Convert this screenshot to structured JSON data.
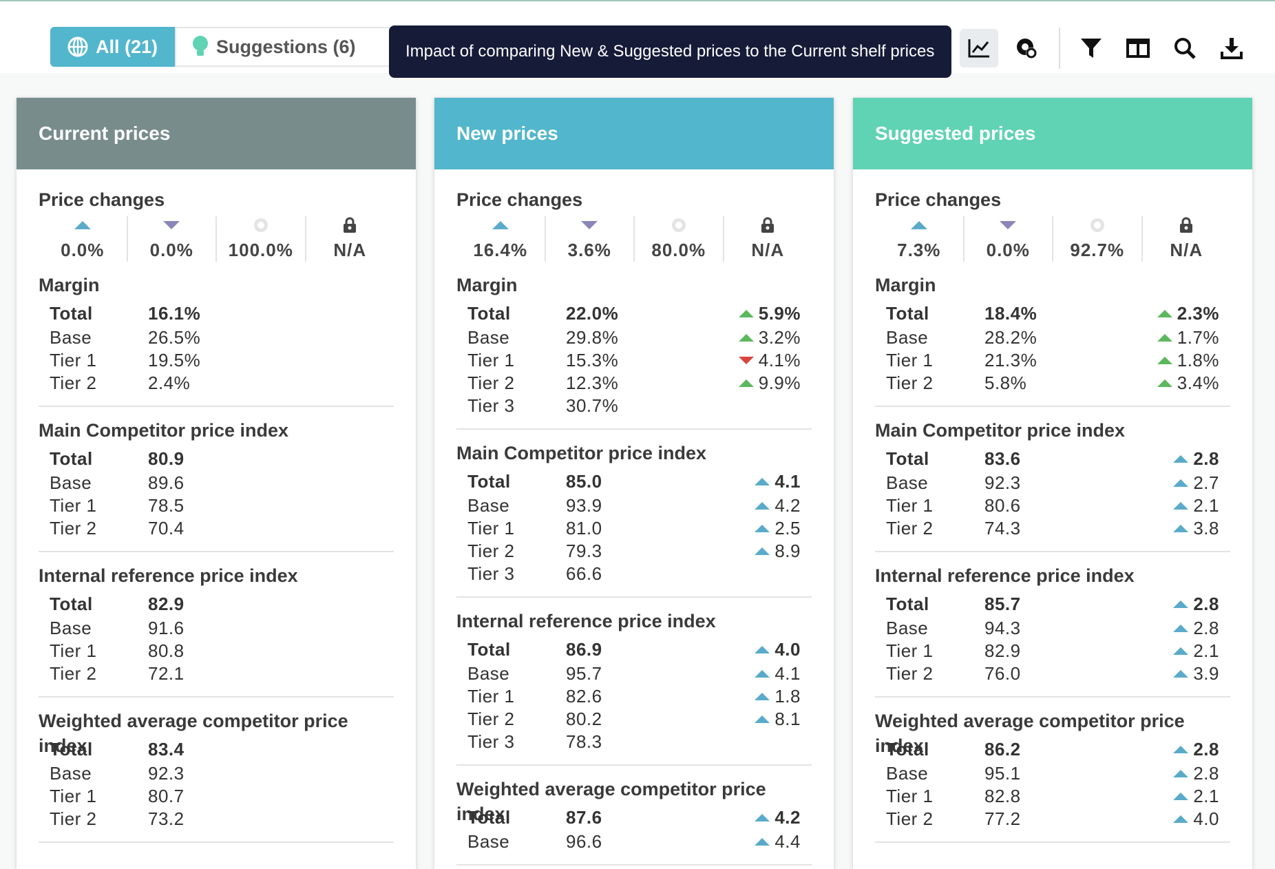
{
  "toolbar": {
    "tabs": [
      "All (21)",
      "Suggestions (6)"
    ],
    "tooltip": "Impact of comparing New & Suggested prices to the Current shelf prices"
  },
  "panels": [
    {
      "title": "Current prices",
      "color": "#788c8c",
      "price_changes": {
        "title": "Price changes",
        "values": [
          "0.0%",
          "0.0%",
          "100.0%",
          "N/A"
        ]
      },
      "sections": [
        {
          "title": "Margin",
          "arrow_color": "#5cb85c",
          "rows": [
            {
              "label": "Total",
              "value": "16.1%"
            },
            {
              "label": "Base",
              "value": "26.5%"
            },
            {
              "label": "Tier 1",
              "value": "19.5%"
            },
            {
              "label": "Tier 2",
              "value": "2.4%"
            }
          ]
        },
        {
          "title": "Main Competitor price index",
          "arrow_color": "#5aabc9",
          "rows": [
            {
              "label": "Total",
              "value": "80.9"
            },
            {
              "label": "Base",
              "value": "89.6"
            },
            {
              "label": "Tier 1",
              "value": "78.5"
            },
            {
              "label": "Tier 2",
              "value": "70.4"
            }
          ]
        },
        {
          "title": "Internal reference price index",
          "arrow_color": "#5aabc9",
          "rows": [
            {
              "label": "Total",
              "value": "82.9"
            },
            {
              "label": "Base",
              "value": "91.6"
            },
            {
              "label": "Tier 1",
              "value": "80.8"
            },
            {
              "label": "Tier 2",
              "value": "72.1"
            }
          ]
        },
        {
          "title": "Weighted average competitor price index",
          "arrow_color": "#5aabc9",
          "rows": [
            {
              "label": "Total",
              "value": "83.4"
            },
            {
              "label": "Base",
              "value": "92.3"
            },
            {
              "label": "Tier 1",
              "value": "80.7"
            },
            {
              "label": "Tier 2",
              "value": "73.2"
            }
          ]
        }
      ]
    },
    {
      "title": "New prices",
      "color": "#52b6cc",
      "price_changes": {
        "title": "Price changes",
        "values": [
          "16.4%",
          "3.6%",
          "80.0%",
          "N/A"
        ]
      },
      "sections": [
        {
          "title": "Margin",
          "arrow_color": "#5cb85c",
          "rows": [
            {
              "label": "Total",
              "value": "22.0%",
              "change": "5.9%",
              "trend": "up"
            },
            {
              "label": "Base",
              "value": "29.8%",
              "change": "3.2%",
              "trend": "up"
            },
            {
              "label": "Tier 1",
              "value": "15.3%",
              "change": "4.1%",
              "trend": "down"
            },
            {
              "label": "Tier 2",
              "value": "12.3%",
              "change": "9.9%",
              "trend": "up"
            },
            {
              "label": "Tier 3",
              "value": "30.7%"
            }
          ]
        },
        {
          "title": "Main Competitor price index",
          "arrow_color": "#5aabc9",
          "rows": [
            {
              "label": "Total",
              "value": "85.0",
              "change": "4.1",
              "trend": "up"
            },
            {
              "label": "Base",
              "value": "93.9",
              "change": "4.2",
              "trend": "up"
            },
            {
              "label": "Tier 1",
              "value": "81.0",
              "change": "2.5",
              "trend": "up"
            },
            {
              "label": "Tier 2",
              "value": "79.3",
              "change": "8.9",
              "trend": "up"
            },
            {
              "label": "Tier 3",
              "value": "66.6"
            }
          ]
        },
        {
          "title": "Internal reference price index",
          "arrow_color": "#5aabc9",
          "rows": [
            {
              "label": "Total",
              "value": "86.9",
              "change": "4.0",
              "trend": "up"
            },
            {
              "label": "Base",
              "value": "95.7",
              "change": "4.1",
              "trend": "up"
            },
            {
              "label": "Tier 1",
              "value": "82.6",
              "change": "1.8",
              "trend": "up"
            },
            {
              "label": "Tier 2",
              "value": "80.2",
              "change": "8.1",
              "trend": "up"
            },
            {
              "label": "Tier 3",
              "value": "78.3"
            }
          ]
        },
        {
          "title": "Weighted average competitor price index",
          "arrow_color": "#5aabc9",
          "rows": [
            {
              "label": "Total",
              "value": "87.6",
              "change": "4.2",
              "trend": "up"
            },
            {
              "label": "Base",
              "value": "96.6",
              "change": "4.4",
              "trend": "up"
            }
          ]
        }
      ]
    },
    {
      "title": "Suggested prices",
      "color": "#5fd3b4",
      "price_changes": {
        "title": "Price changes",
        "values": [
          "7.3%",
          "0.0%",
          "92.7%",
          "N/A"
        ]
      },
      "sections": [
        {
          "title": "Margin",
          "arrow_color": "#5cb85c",
          "rows": [
            {
              "label": "Total",
              "value": "18.4%",
              "change": "2.3%",
              "trend": "up"
            },
            {
              "label": "Base",
              "value": "28.2%",
              "change": "1.7%",
              "trend": "up"
            },
            {
              "label": "Tier 1",
              "value": "21.3%",
              "change": "1.8%",
              "trend": "up"
            },
            {
              "label": "Tier 2",
              "value": "5.8%",
              "change": "3.4%",
              "trend": "up"
            }
          ]
        },
        {
          "title": "Main Competitor price index",
          "arrow_color": "#5aabc9",
          "rows": [
            {
              "label": "Total",
              "value": "83.6",
              "change": "2.8",
              "trend": "up"
            },
            {
              "label": "Base",
              "value": "92.3",
              "change": "2.7",
              "trend": "up"
            },
            {
              "label": "Tier 1",
              "value": "80.6",
              "change": "2.1",
              "trend": "up"
            },
            {
              "label": "Tier 2",
              "value": "74.3",
              "change": "3.8",
              "trend": "up"
            }
          ]
        },
        {
          "title": "Internal reference price index",
          "arrow_color": "#5aabc9",
          "rows": [
            {
              "label": "Total",
              "value": "85.7",
              "change": "2.8",
              "trend": "up"
            },
            {
              "label": "Base",
              "value": "94.3",
              "change": "2.8",
              "trend": "up"
            },
            {
              "label": "Tier 1",
              "value": "82.9",
              "change": "2.1",
              "trend": "up"
            },
            {
              "label": "Tier 2",
              "value": "76.0",
              "change": "3.9",
              "trend": "up"
            }
          ]
        },
        {
          "title": "Weighted average competitor price index",
          "arrow_color": "#5aabc9",
          "rows": [
            {
              "label": "Total",
              "value": "86.2",
              "change": "2.8",
              "trend": "up"
            },
            {
              "label": "Base",
              "value": "95.1",
              "change": "2.8",
              "trend": "up"
            },
            {
              "label": "Tier 1",
              "value": "82.8",
              "change": "2.1",
              "trend": "up"
            },
            {
              "label": "Tier 2",
              "value": "77.2",
              "change": "4.0",
              "trend": "up"
            }
          ]
        }
      ]
    }
  ]
}
